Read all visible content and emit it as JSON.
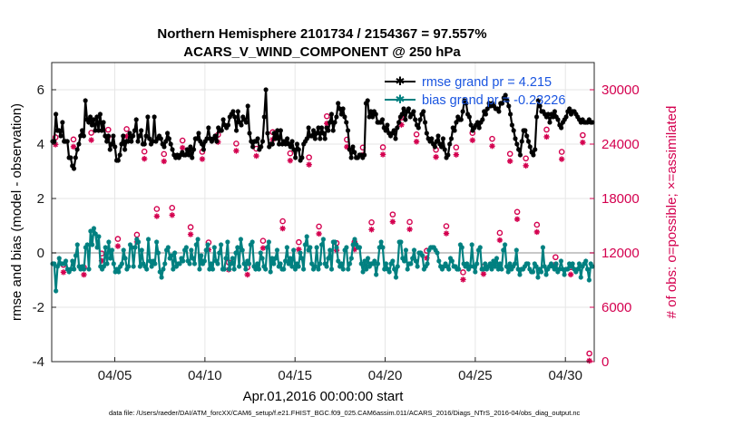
{
  "chart_data": {
    "type": "line",
    "title": [
      "Northern Hemisphere 2101734 / 2154367 = 97.557%",
      "ACARS_V_WIND_COMPONENT @ 250 hPa"
    ],
    "xlabel": "Apr.01,2016 00:00:00 start",
    "ylabel": "rmse and bias (model - observation)",
    "ylabel_right": "# of obs: o=possible; ×=assimilated",
    "footer": "data file: /Users/raeder/DAI/ATM_forcXX/CAM6_setup/f.e21.FHIST_BGC.f09_025.CAM6assim.011/ACARS_2016/Diags_NTrS_2016-04/obs_diag_output.nc",
    "x_unit": "days since Apr.01,2016 00:00",
    "xlim": [
      0.5,
      30.6
    ],
    "ylim": [
      -4,
      7
    ],
    "ylim_right": [
      0,
      33000
    ],
    "x_ticks": [
      {
        "x": 4,
        "label": "04/05"
      },
      {
        "x": 9,
        "label": "04/10"
      },
      {
        "x": 14,
        "label": "04/15"
      },
      {
        "x": 19,
        "label": "04/20"
      },
      {
        "x": 24,
        "label": "04/25"
      },
      {
        "x": 29,
        "label": "04/30"
      }
    ],
    "y_ticks": [
      "-4",
      "-2",
      "0",
      "2",
      "4",
      "6"
    ],
    "y_ticks_right": [
      "0",
      "6000",
      "12000",
      "18000",
      "24000",
      "30000"
    ],
    "legend": [
      {
        "label": "rmse grand pr = 4.215",
        "color": "#000000"
      },
      {
        "label": "bias grand pr = -0.23226",
        "color": "#008080"
      }
    ],
    "series": [
      {
        "name": "rmse",
        "color": "#000000",
        "marker": "star",
        "values": [
          4.1,
          4.1,
          5.1,
          4.5,
          4.5,
          4.3,
          4.8,
          4.1,
          4.1,
          4.1,
          3.5,
          3.5,
          3.2,
          3.1,
          3.5,
          3.8,
          4.0,
          4.3,
          4.5,
          4.3,
          5.6,
          4.9,
          4.8,
          5.0,
          4.7,
          4.9,
          4.5,
          5.0,
          4.5,
          5.1,
          4.5,
          4.8,
          4.3,
          4.1,
          4.3,
          3.8,
          4.0,
          4.3,
          3.9,
          3.4,
          3.4,
          3.6,
          4.0,
          4.3,
          3.8,
          4.1,
          4.1,
          4.4,
          4.1,
          4.3,
          4.5,
          4.9,
          4.1,
          4.3,
          4.5,
          4.0,
          4.0,
          4.3,
          5.0,
          4.2,
          4.0,
          4.1,
          5.0,
          4.1,
          4.2,
          4.3,
          4.2,
          4.0,
          3.9,
          4.1,
          4.4,
          4.2,
          4.0,
          3.8,
          3.6,
          3.5,
          3.6,
          3.5,
          3.6,
          3.7,
          3.6,
          3.6,
          3.8,
          3.6,
          3.9,
          3.5,
          3.8,
          4.2,
          4.2,
          4.4,
          4.1,
          4.0,
          3.8,
          4.1,
          4.2,
          4.6,
          4.2,
          4.1,
          4.2,
          4.3,
          4.1,
          4.6,
          4.5,
          4.5,
          4.9,
          4.7,
          4.6,
          4.7,
          5.0,
          5.1,
          5.2,
          5.0,
          4.5,
          5.2,
          4.8,
          4.7,
          5.0,
          4.9,
          4.8,
          5.4,
          4.4,
          4.1,
          3.9,
          4.1,
          4.1,
          4.2,
          3.8,
          3.9,
          4.1,
          5.0,
          6.0,
          4.4,
          3.9,
          4.0,
          4.0,
          4.4,
          4.2,
          4.5,
          4.0,
          4.5,
          4.0,
          4.1,
          4.0,
          4.2,
          4.0,
          3.9,
          4.1,
          3.8,
          3.5,
          4.0,
          3.8,
          3.4,
          3.5,
          4.0,
          4.1,
          4.2,
          4.6,
          4.3,
          4.3,
          4.5,
          4.2,
          4.4,
          4.6,
          4.2,
          4.6,
          4.4,
          4.2,
          4.6,
          4.5,
          4.8,
          5.1,
          4.5,
          4.8,
          5.0,
          5.5,
          5.3,
          5.1,
          5.3,
          5.0,
          4.8,
          4.5,
          3.8,
          3.5,
          3.9,
          3.7,
          3.5,
          3.5,
          3.6,
          3.6,
          3.5,
          3.6,
          5.5,
          5.6,
          5.0,
          5.2,
          5.0,
          5.2,
          5.1,
          4.8,
          4.8,
          4.8,
          4.9,
          4.6,
          4.5,
          4.7,
          4.4,
          4.3,
          4.4,
          4.5,
          4.2,
          4.6,
          4.8,
          5.0,
          5.1,
          5.3,
          4.9,
          5.2,
          5.3,
          5.0,
          5.1,
          5.2,
          4.9,
          4.7,
          4.6,
          4.9,
          5.1,
          5.2,
          4.8,
          4.4,
          4.2,
          4.1,
          4.2,
          4.0,
          3.9,
          4.1,
          4.3,
          4.0,
          3.9,
          4.2,
          3.8,
          3.5,
          3.6,
          4.0,
          4.2,
          4.6,
          4.5,
          4.8,
          5.0,
          4.9,
          4.9,
          5.2,
          5.6,
          5.5,
          5.1,
          5.0,
          4.7,
          4.5,
          4.6,
          4.7,
          4.8,
          4.6,
          4.8,
          4.9,
          5.2,
          5.1,
          5.3,
          5.5,
          5.4,
          5.5,
          5.4,
          5.3,
          5.3,
          5.2,
          5.5,
          5.5,
          5.7,
          5.8,
          5.6,
          5.4,
          5.1,
          4.7,
          4.5,
          4.2,
          4.0,
          3.8,
          3.6,
          4.1,
          4.5,
          4.5,
          4.3,
          4.1,
          3.9,
          3.7,
          3.6,
          3.8,
          5.0,
          5.6,
          5.4,
          5.2,
          5.2,
          5.1,
          5.0,
          5.1,
          4.8,
          5.1,
          5.0,
          5.2,
          5.0,
          4.9,
          4.7,
          4.6,
          4.8,
          4.9,
          5.0,
          5.2,
          5.3,
          5.1,
          5.2,
          5.2,
          5.1,
          5.0,
          4.9,
          4.8,
          4.9,
          4.8,
          4.8,
          4.8,
          4.9,
          4.8,
          4.8
        ]
      },
      {
        "name": "bias",
        "color": "#008080",
        "marker": "star",
        "values": [
          -0.4,
          -0.4,
          -1.4,
          -0.5,
          -0.2,
          -0.4,
          -0.4,
          -0.4,
          -0.3,
          -0.6,
          -0.7,
          -0.6,
          -0.3,
          -0.6,
          -0.1,
          0.3,
          -0.5,
          -0.6,
          -0.5,
          -0.6,
          0.2,
          0.3,
          -0.6,
          0.8,
          0.3,
          0.9,
          0.7,
          0.2,
          0.6,
          -0.5,
          -0.6,
          -0.5,
          0.2,
          -0.4,
          0.4,
          -0.2,
          0.1,
          -0.4,
          -0.7,
          -0.6,
          -0.7,
          -0.5,
          -0.4,
          0.1,
          -0.2,
          -0.6,
          -0.5,
          0.3,
          0.2,
          -0.5,
          0.2,
          0.5,
          0.4,
          -0.5,
          0.1,
          -0.4,
          -0.5,
          -0.6,
          0.5,
          -0.3,
          -0.5,
          -0.3,
          -0.4,
          0.4,
          0.0,
          -0.7,
          -0.9,
          -0.6,
          -0.4,
          0.1,
          0.2,
          -0.2,
          -0.1,
          -0.6,
          0.0,
          -0.5,
          -0.4,
          -0.4,
          -0.2,
          -0.3,
          0.1,
          0.2,
          -0.3,
          -0.4,
          0.1,
          -0.2,
          -0.4,
          0.3,
          0.5,
          -0.6,
          -0.1,
          -0.4,
          -0.3,
          0.1,
          0.3,
          -0.6,
          -0.4,
          -0.6,
          0.2,
          -0.3,
          -0.4,
          0.0,
          0.3,
          -0.6,
          -0.6,
          -0.2,
          0.4,
          -0.6,
          -0.4,
          -0.2,
          -0.6,
          0.0,
          0.2,
          -0.5,
          0.5,
          0.1,
          -0.4,
          -0.6,
          -0.3,
          -0.4,
          0.3,
          0.4,
          -0.5,
          -0.6,
          -0.4,
          -0.6,
          0.0,
          -0.2,
          -0.5,
          -0.6,
          0.2,
          0.4,
          -0.7,
          -0.2,
          -0.4,
          -0.2,
          0.1,
          -0.5,
          -0.4,
          -0.6,
          -0.6,
          -0.3,
          0.2,
          -0.4,
          -0.2,
          -0.5,
          0.1,
          -0.6,
          -0.4,
          -0.5,
          0.0,
          -0.2,
          -0.6,
          0.3,
          0.6,
          0.1,
          0.2,
          -0.4,
          -0.6,
          -0.5,
          0.2,
          -0.6,
          -0.4,
          0.3,
          0.5,
          -0.4,
          -0.5,
          -0.2,
          0.1,
          -0.6,
          0.4,
          0.4,
          0.2,
          -0.3,
          -0.5,
          -0.4,
          -0.6,
          0.1,
          0.2,
          -0.6,
          -0.4,
          -0.2,
          0.3,
          0.5,
          0.3,
          0.2,
          0.2,
          -0.4,
          -0.7,
          -0.3,
          -0.6,
          -0.2,
          -0.5,
          -0.4,
          -0.4,
          -0.3,
          -0.8,
          -0.4,
          0.2,
          0.4,
          0.2,
          -0.6,
          -0.4,
          -0.6,
          -0.7,
          -0.4,
          -0.3,
          -0.6,
          -0.9,
          -0.5,
          0.4,
          0.4,
          -0.2,
          -0.3,
          0.1,
          -0.6,
          -0.4,
          -0.4,
          -0.2,
          0.1,
          -0.3,
          -0.5,
          0.0,
          0.0,
          -0.1,
          -0.6,
          -0.5,
          -0.4,
          0.1,
          0.2,
          0.2,
          0.2,
          0.1,
          0.0,
          -0.3,
          -0.5,
          -0.6,
          -0.5,
          -0.4,
          -0.5,
          -0.6,
          -0.2,
          -0.3,
          -0.5,
          -0.5,
          -0.6,
          -0.6,
          0.3,
          0.2,
          -0.4,
          -0.5,
          -0.4,
          -0.6,
          -0.5,
          0.3,
          -0.5,
          -0.7,
          -0.4,
          0.1,
          0.2,
          -0.6,
          -0.6,
          -0.4,
          -0.6,
          -0.5,
          -0.4,
          -0.6,
          -0.3,
          -0.5,
          -0.2,
          -0.6,
          -0.4,
          -0.6,
          0.1,
          0.3,
          -0.5,
          -0.7,
          -0.4,
          -0.6,
          -0.5,
          -0.4,
          0.1,
          -0.6,
          -0.8,
          -0.6,
          -0.6,
          -0.5,
          -0.4,
          -0.4,
          -0.6,
          -0.7,
          -0.7,
          -0.4,
          -0.5,
          -0.9,
          -0.6,
          -0.7,
          0.2,
          -0.5,
          -0.8,
          -0.6,
          -0.5,
          -0.4,
          -0.5,
          -0.6,
          -0.4,
          -0.7,
          -0.6,
          -0.3,
          -0.6,
          -0.8,
          -0.6,
          -0.6,
          -0.4,
          -0.5,
          -0.4,
          -0.6,
          -0.7,
          -0.6,
          -0.4,
          -0.9,
          -0.5,
          -0.4,
          -0.3,
          -0.6,
          -1.0,
          -0.4,
          -0.5
        ]
      }
    ]
  }
}
